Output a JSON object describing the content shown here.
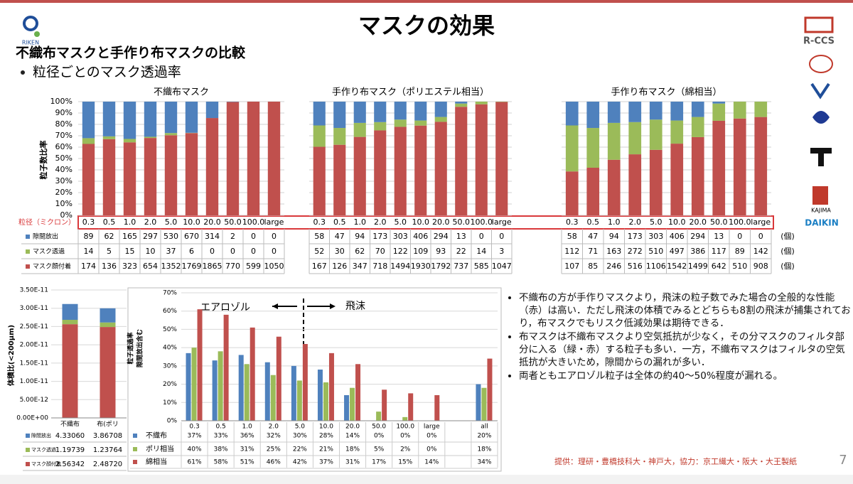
{
  "header": {
    "title": "マスクの効果",
    "subtitle": "不織布マスクと手作り布マスクの比較",
    "bullet": "粒径ごとのマスク透過率"
  },
  "logos": [
    "RIKEN",
    "R-CCS",
    "KAJIMA",
    "DAIKIN"
  ],
  "chart_data": [
    {
      "type": "bar",
      "stacked": "percent",
      "title": "不織布マスク",
      "ylabel": "粒子数比率",
      "xlabel": "粒径（ミクロン）",
      "categories": [
        "0.3",
        "0.5",
        "1.0",
        "2.0",
        "5.0",
        "10.0",
        "20.0",
        "50.0",
        "100.0",
        "large"
      ],
      "series": [
        {
          "name": "隙間放出",
          "color": "#4f81bd",
          "values": [
            89,
            62,
            165,
            297,
            530,
            670,
            314,
            2,
            0,
            0
          ]
        },
        {
          "name": "マスク透過",
          "color": "#9bbb59",
          "values": [
            14,
            5,
            15,
            10,
            37,
            6,
            0,
            0,
            0,
            0
          ]
        },
        {
          "name": "マスク顔付着",
          "color": "#c0504d",
          "values": [
            174,
            136,
            323,
            654,
            1352,
            1769,
            1865,
            770,
            599,
            1050
          ]
        }
      ],
      "ylim": [
        0,
        100
      ],
      "yticks": [
        {
          "value": 0,
          "label": "0%"
        },
        {
          "value": 10,
          "label": "10%"
        },
        {
          "value": 20,
          "label": "20%"
        },
        {
          "value": 30,
          "label": "30%"
        },
        {
          "value": 40,
          "label": "40%"
        },
        {
          "value": 50,
          "label": "50%"
        },
        {
          "value": 60,
          "label": "60%"
        },
        {
          "value": 70,
          "label": "70%"
        },
        {
          "value": 80,
          "label": "80%"
        },
        {
          "value": 90,
          "label": "90%"
        },
        {
          "value": 100,
          "label": "100%"
        }
      ],
      "grid": true
    },
    {
      "type": "bar",
      "stacked": "percent",
      "title": "手作り布マスク（ポリエステル相当）",
      "categories": [
        "0.3",
        "0.5",
        "1.0",
        "2.0",
        "5.0",
        "10.0",
        "20.0",
        "50.0",
        "100.0",
        "large"
      ],
      "series": [
        {
          "color": "#4f81bd",
          "values": [
            58,
            47,
            94,
            173,
            303,
            406,
            294,
            13,
            0,
            0
          ]
        },
        {
          "color": "#9bbb59",
          "values": [
            52,
            30,
            62,
            70,
            122,
            109,
            93,
            22,
            14,
            3
          ]
        },
        {
          "color": "#c0504d",
          "values": [
            167,
            126,
            347,
            718,
            1494,
            1930,
            1792,
            737,
            585,
            1047
          ]
        }
      ],
      "ylim": [
        0,
        100
      ],
      "grid": true
    },
    {
      "type": "bar",
      "stacked": "percent",
      "title": "手作り布マスク（綿相当）",
      "unit": "(個)",
      "categories": [
        "0.3",
        "0.5",
        "1.0",
        "2.0",
        "5.0",
        "10.0",
        "20.0",
        "50.0",
        "100.0",
        "large"
      ],
      "series": [
        {
          "color": "#4f81bd",
          "values": [
            58,
            47,
            94,
            173,
            303,
            406,
            294,
            13,
            0,
            0
          ]
        },
        {
          "color": "#9bbb59",
          "values": [
            112,
            71,
            163,
            272,
            510,
            497,
            386,
            117,
            89,
            142
          ]
        },
        {
          "color": "#c0504d",
          "values": [
            107,
            85,
            246,
            516,
            1106,
            1542,
            1499,
            642,
            510,
            908
          ]
        }
      ],
      "ylim": [
        0,
        100
      ],
      "grid": true
    },
    {
      "type": "bar",
      "stacked": true,
      "ylabel": "体積比(<200μm)",
      "categories": [
        "不織布",
        "布(ポリ"
      ],
      "series": [
        {
          "name": "隙間放出",
          "color": "#4f81bd",
          "values": [
            4.3306e-12,
            3.86708e-12
          ],
          "value_labels": [
            "4.33060",
            "3.86708"
          ]
        },
        {
          "name": "マスク透過",
          "color": "#9bbb59",
          "values": [
            1.19739e-12,
            1.23764e-12
          ],
          "value_labels": [
            "1.19739",
            "1.23764"
          ]
        },
        {
          "name": "マスク顔付着",
          "color": "#c0504d",
          "values": [
            2.56342e-11,
            2.4872e-11
          ],
          "value_labels": [
            "2.56342",
            "2.48720"
          ]
        }
      ],
      "ylim": [
        0,
        3.5e-11
      ],
      "yticks": [
        {
          "value": 0,
          "label": "0.00E+00"
        },
        {
          "value": 5e-12,
          "label": "5.00E-12"
        },
        {
          "value": 1e-11,
          "label": "1.00E-11"
        },
        {
          "value": 1.5e-11,
          "label": "1.50E-11"
        },
        {
          "value": 2e-11,
          "label": "2.00E-11"
        },
        {
          "value": 2.5e-11,
          "label": "2.50E-11"
        },
        {
          "value": 3e-11,
          "label": "3.00E-11"
        },
        {
          "value": 3.5e-11,
          "label": "3.50E-11"
        }
      ],
      "grid": true
    },
    {
      "type": "bar",
      "ylabel": [
        "粒子透過率",
        "隙間放出含む"
      ],
      "annotations": [
        "エアロゾル",
        "飛沫"
      ],
      "categories": [
        "0.3",
        "0.5",
        "1.0",
        "2.0",
        "5.0",
        "10.0",
        "20.0",
        "50.0",
        "100.0",
        "large",
        "all"
      ],
      "series": [
        {
          "name": "不織布",
          "color": "#4f81bd",
          "values": [
            37,
            33,
            36,
            32,
            30,
            28,
            14,
            0,
            0,
            0,
            20
          ],
          "value_labels": [
            "37%",
            "33%",
            "36%",
            "32%",
            "30%",
            "28%",
            "14%",
            "0%",
            "0%",
            "0%",
            "20%"
          ]
        },
        {
          "name": "ポリ相当",
          "color": "#9bbb59",
          "values": [
            40,
            38,
            31,
            25,
            22,
            21,
            18,
            5,
            2,
            0,
            18
          ],
          "value_labels": [
            "40%",
            "38%",
            "31%",
            "25%",
            "22%",
            "21%",
            "18%",
            "5%",
            "2%",
            "0%",
            "18%"
          ]
        },
        {
          "name": "綿相当",
          "color": "#c0504d",
          "values": [
            61,
            58,
            51,
            46,
            42,
            37,
            31,
            17,
            15,
            14,
            34
          ],
          "value_labels": [
            "61%",
            "58%",
            "51%",
            "46%",
            "42%",
            "37%",
            "31%",
            "17%",
            "15%",
            "14%",
            "34%"
          ]
        }
      ],
      "ylim": [
        0,
        70
      ],
      "yticks": [
        {
          "value": 0,
          "label": "0%"
        },
        {
          "value": 10,
          "label": "10%"
        },
        {
          "value": 20,
          "label": "20%"
        },
        {
          "value": 30,
          "label": "30%"
        },
        {
          "value": 40,
          "label": "40%"
        },
        {
          "value": 50,
          "label": "50%"
        },
        {
          "value": 60,
          "label": "60%"
        },
        {
          "value": 70,
          "label": "70%"
        }
      ],
      "grid": true
    }
  ],
  "notes": [
    "不織布の方が手作りマスクより，飛沫の粒子数でみた場合の全般的な性能（赤）は高い．ただし飛沫の体積でみるとどちらも8割の飛沫が捕集されており，布マスクでもリスク低減効果は期待できる．",
    "布マスクは不織布マスクより空気抵抗が少なく，その分マスクのフィルタ部分に入る（緑・赤）する粒子も多い．一方，不織布マスクはフィルタの空気抵抗が大きいため，隙間からの漏れが多い．",
    "両者ともエアロゾル粒子は全体の約40〜50%程度が漏れる。"
  ],
  "credit": "提供：理研・豊橋技科大・神戸大，協力：京工繊大・阪大・大王製紙",
  "page": "7"
}
